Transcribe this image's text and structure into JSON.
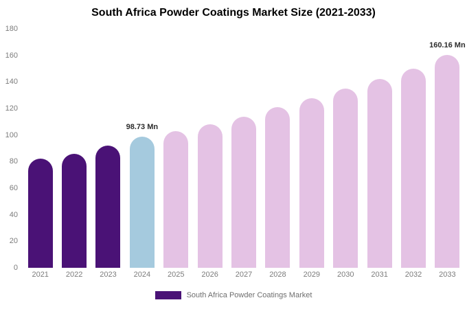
{
  "chart_data": {
    "type": "bar",
    "title": "South Africa Powder Coatings Market Size (2021-2033)",
    "xlabel": "",
    "ylabel": "",
    "ylim": [
      0,
      180
    ],
    "yticks": [
      0,
      20,
      40,
      60,
      80,
      100,
      120,
      140,
      160,
      180
    ],
    "grid": false,
    "categories": [
      "2021",
      "2022",
      "2023",
      "2024",
      "2025",
      "2026",
      "2027",
      "2028",
      "2029",
      "2030",
      "2031",
      "2032",
      "2033"
    ],
    "values": [
      82,
      86,
      92,
      98.73,
      103,
      108,
      114,
      121,
      128,
      135,
      142,
      150,
      160.16
    ],
    "color_roles": [
      "historical",
      "historical",
      "historical",
      "current",
      "forecast",
      "forecast",
      "forecast",
      "forecast",
      "forecast",
      "forecast",
      "forecast",
      "forecast",
      "forecast"
    ],
    "colors": {
      "historical": "#4a1276",
      "current": "#a5cade",
      "forecast": "#e4c2e4"
    },
    "annotations": {
      "2024": "98.73 Mn",
      "2033": "160.16 Mn"
    },
    "legend_position": "bottom",
    "legend": {
      "label": "South Africa Powder Coatings Market",
      "swatch_color": "#4a1276"
    }
  }
}
